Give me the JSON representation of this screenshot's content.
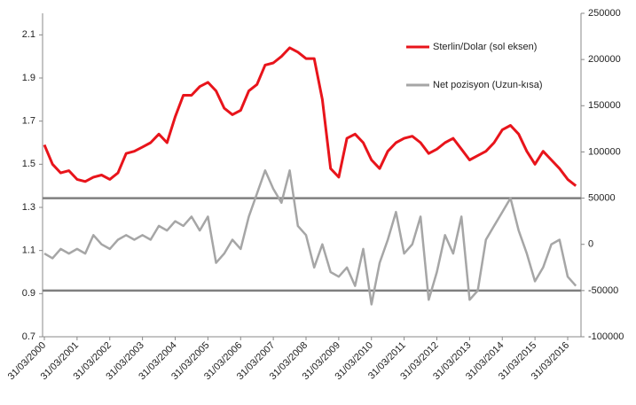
{
  "chart_data": {
    "type": "line",
    "categories": [
      "31/03/2000",
      null,
      null,
      null,
      "31/03/2001",
      null,
      null,
      null,
      "31/03/2002",
      null,
      null,
      null,
      "31/03/2003",
      null,
      null,
      null,
      "31/03/2004",
      null,
      null,
      null,
      "31/03/2005",
      null,
      null,
      null,
      "31/03/2006",
      null,
      null,
      null,
      "31/03/2007",
      null,
      null,
      null,
      "31/03/2008",
      null,
      null,
      null,
      "31/03/2009",
      null,
      null,
      null,
      "31/03/2010",
      null,
      null,
      null,
      "31/03/2011",
      null,
      null,
      null,
      "31/03/2012",
      null,
      null,
      null,
      "31/03/2013",
      null,
      null,
      null,
      "31/03/2014",
      null,
      null,
      null,
      "31/03/2015",
      null,
      null,
      null,
      "31/03/2016",
      null
    ],
    "series": [
      {
        "name": "Sterlin/Dolar (sol eksen)",
        "color": "#e8141b",
        "values": [
          1.59,
          1.5,
          1.46,
          1.47,
          1.43,
          1.42,
          1.44,
          1.45,
          1.43,
          1.46,
          1.55,
          1.56,
          1.58,
          1.6,
          1.64,
          1.6,
          1.72,
          1.82,
          1.82,
          1.86,
          1.88,
          1.84,
          1.76,
          1.73,
          1.75,
          1.84,
          1.87,
          1.96,
          1.97,
          2.0,
          2.04,
          2.02,
          1.99,
          1.99,
          1.8,
          1.48,
          1.44,
          1.62,
          1.64,
          1.6,
          1.52,
          1.48,
          1.56,
          1.6,
          1.62,
          1.63,
          1.6,
          1.55,
          1.57,
          1.6,
          1.62,
          1.57,
          1.52,
          1.54,
          1.56,
          1.6,
          1.66,
          1.68,
          1.64,
          1.56,
          1.5,
          1.56,
          1.52,
          1.48,
          1.43,
          1.4
        ]
      },
      {
        "name": "Net pozisyon (Uzun-kısa)",
        "color": "#a6a6a6",
        "axis": "y2",
        "values": [
          -10000,
          -15000,
          -5000,
          -10000,
          -5000,
          -10000,
          10000,
          0,
          -5000,
          5000,
          10000,
          5000,
          10000,
          5000,
          20000,
          15000,
          25000,
          20000,
          30000,
          15000,
          30000,
          -20000,
          -10000,
          5000,
          -5000,
          30000,
          55000,
          80000,
          60000,
          45000,
          80000,
          20000,
          10000,
          -25000,
          0,
          -30000,
          -35000,
          -25000,
          -45000,
          -5000,
          -65000,
          -20000,
          5000,
          35000,
          -10000,
          0,
          30000,
          -60000,
          -30000,
          10000,
          -10000,
          30000,
          -60000,
          -50000,
          5000,
          20000,
          35000,
          50000,
          15000,
          -10000,
          -40000,
          -25000,
          0,
          5000,
          -35000,
          -45000
        ]
      }
    ],
    "ylim": [
      0.7,
      2.2
    ],
    "yticks": [
      0.7,
      0.9,
      1.1,
      1.3,
      1.5,
      1.7,
      1.9,
      2.1
    ],
    "y2lim": [
      -100000,
      250000
    ],
    "y2ticks": [
      -100000,
      -50000,
      0,
      50000,
      100000,
      150000,
      200000,
      250000
    ],
    "hlines": {
      "axis": "y2",
      "values": [
        50000,
        -50000
      ],
      "color": "#7f7f7f"
    },
    "legend": "upper right",
    "grid": false
  }
}
